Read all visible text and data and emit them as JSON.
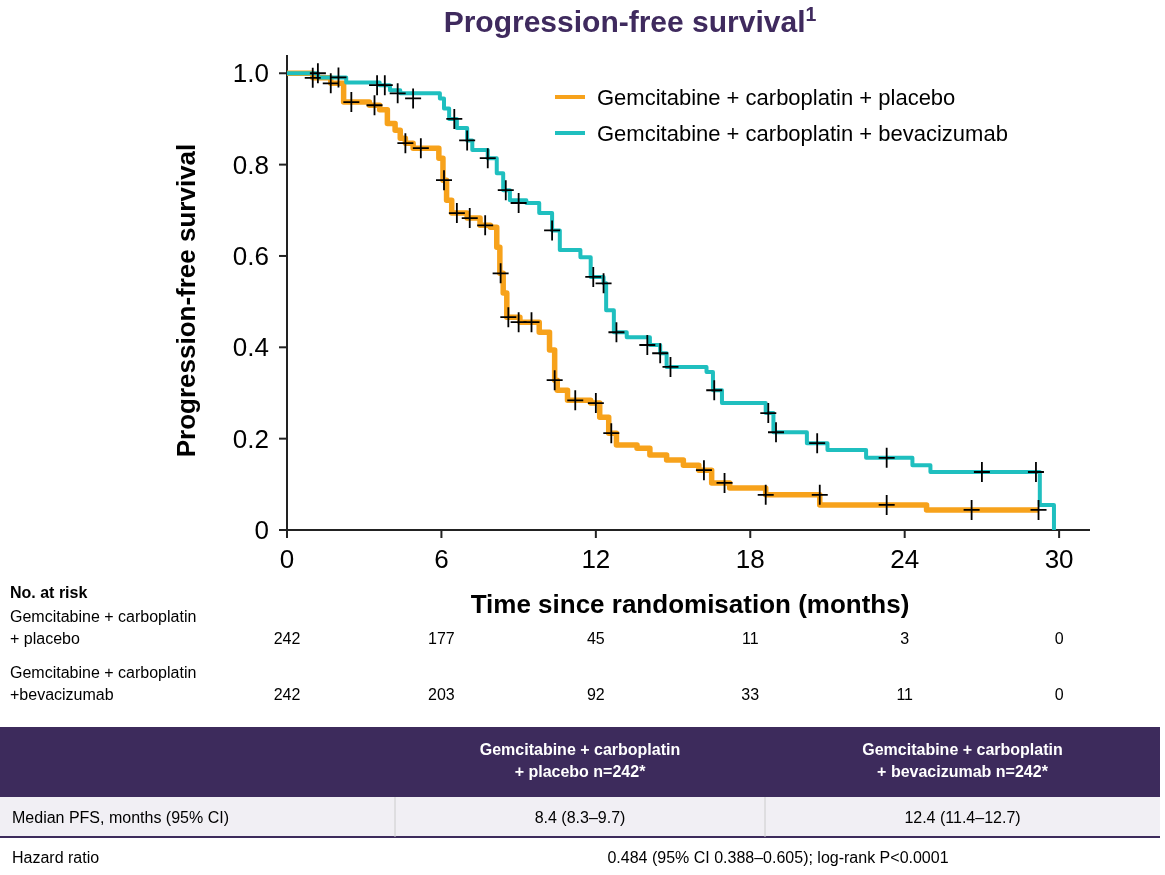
{
  "chart_data": {
    "type": "step",
    "title": "Progression-free survival$^{1}$",
    "xlabel": "Time since randomisation (months)",
    "ylabel": "Progression-free survival",
    "xlim": [
      0,
      31.2
    ],
    "ylim": [
      0,
      1.04
    ],
    "xticks": [
      0,
      6,
      12,
      18,
      24,
      30
    ],
    "yticks": [
      0,
      0.2,
      0.4,
      0.6,
      0.8,
      {
        "value": 1,
        "label": "1.0"
      }
    ],
    "grid": false,
    "legend": "top right",
    "line_style": "solid",
    "series": [
      {
        "name": "Gemcitabine + carboplatin + placebo",
        "color": "#f7a21b",
        "x": [
          0,
          1.0,
          1.7,
          2.2,
          3.2,
          3.6,
          3.9,
          4.2,
          4.4,
          4.6,
          4.9,
          5.9,
          6.06,
          6.2,
          6.4,
          7.0,
          7.5,
          7.9,
          8.15,
          8.27,
          8.4,
          8.54,
          9.05,
          9.8,
          10.2,
          10.4,
          10.5,
          10.9,
          11.8,
          12.15,
          12.5,
          12.8,
          13.6,
          14.1,
          14.75,
          15.4,
          16.0,
          16.5,
          17.2,
          18.6,
          20.7,
          24.85,
          29.2
        ],
        "values": [
          1.0,
          0.99,
          0.978,
          0.937,
          0.93,
          0.92,
          0.89,
          0.875,
          0.858,
          0.847,
          0.836,
          0.814,
          0.766,
          0.722,
          0.694,
          0.683,
          0.667,
          0.663,
          0.619,
          0.562,
          0.519,
          0.466,
          0.455,
          0.433,
          0.394,
          0.328,
          0.306,
          0.284,
          0.278,
          0.247,
          0.212,
          0.186,
          0.179,
          0.164,
          0.153,
          0.142,
          0.131,
          0.103,
          0.092,
          0.077,
          0.055,
          0.044,
          0.044
        ]
      },
      {
        "name": "Gemcitabine + carboplatin + bevacizumab",
        "color": "#1fbfbf",
        "x": [
          0,
          1.2,
          2.3,
          3.6,
          4.0,
          4.4,
          5.94,
          6.1,
          6.3,
          6.6,
          7.0,
          7.2,
          7.8,
          8.15,
          8.4,
          8.66,
          9.3,
          9.8,
          10.3,
          10.6,
          11.4,
          11.8,
          12.3,
          12.4,
          12.7,
          13.2,
          14.1,
          14.5,
          14.75,
          16.3,
          16.55,
          16.9,
          18.6,
          18.9,
          20.2,
          21.0,
          22.5,
          24.3,
          25.0,
          29.25,
          29.8
        ],
        "values": [
          1.0,
          0.991,
          0.98,
          0.974,
          0.963,
          0.956,
          0.945,
          0.923,
          0.9,
          0.88,
          0.853,
          0.832,
          0.814,
          0.781,
          0.744,
          0.722,
          0.716,
          0.694,
          0.656,
          0.613,
          0.597,
          0.554,
          0.54,
          0.481,
          0.433,
          0.422,
          0.405,
          0.387,
          0.357,
          0.346,
          0.306,
          0.278,
          0.256,
          0.214,
          0.19,
          0.175,
          0.158,
          0.142,
          0.127,
          0.055,
          0.0
        ]
      },
      {
        "type": "scatter",
        "marker": "cross",
        "color": "#000000",
        "x": [
          1.0,
          1.7,
          2.5,
          3.4,
          4.6,
          5.2,
          6.1,
          6.6,
          7.1,
          7.7,
          8.3,
          8.6,
          9.0,
          9.5,
          10.4,
          11.2,
          12.0,
          12.6,
          16.2,
          17.0,
          18.6,
          20.7,
          23.3,
          26.6,
          29.2,
          1.2,
          2.0,
          3.5,
          3.8,
          4.3,
          4.9,
          6.5,
          7.0,
          7.8,
          8.5,
          9.0,
          10.3,
          11.9,
          12.3,
          12.8,
          14.0,
          14.5,
          14.9,
          16.6,
          18.7,
          19.0,
          20.6,
          23.3,
          27.0,
          29.1
        ],
        "values": [
          0.99,
          0.978,
          0.937,
          0.93,
          0.847,
          0.836,
          0.766,
          0.694,
          0.683,
          0.667,
          0.562,
          0.466,
          0.455,
          0.455,
          0.328,
          0.284,
          0.278,
          0.212,
          0.131,
          0.103,
          0.077,
          0.077,
          0.055,
          0.044,
          0.044,
          1.0,
          0.991,
          0.974,
          0.974,
          0.956,
          0.945,
          0.9,
          0.853,
          0.814,
          0.744,
          0.716,
          0.656,
          0.554,
          0.54,
          0.433,
          0.405,
          0.387,
          0.357,
          0.306,
          0.256,
          0.214,
          0.19,
          0.158,
          0.127,
          0.127
        ]
      }
    ],
    "annotations": [
      "No. at risk",
      "Gemcitabine + carboplatin + placebo",
      "242",
      "177",
      "45",
      "11",
      "3",
      "0",
      "Gemcitabine + carboplatin +bevacizumab",
      "242",
      "203",
      "92",
      "33",
      "11",
      "0",
      "Gemcitabine + carboplatin + placebo n=242*",
      "Gemcitabine + carboplatin + bevacizumab n=242*",
      "Median PFS, months (95% CI)",
      "8.4 (8.3–9.7)",
      "12.4 (11.4–12.7)",
      "Hazard ratio",
      "0.484 (95% CI 0.388–0.605); log-rank P<0.0001"
    ]
  }
}
